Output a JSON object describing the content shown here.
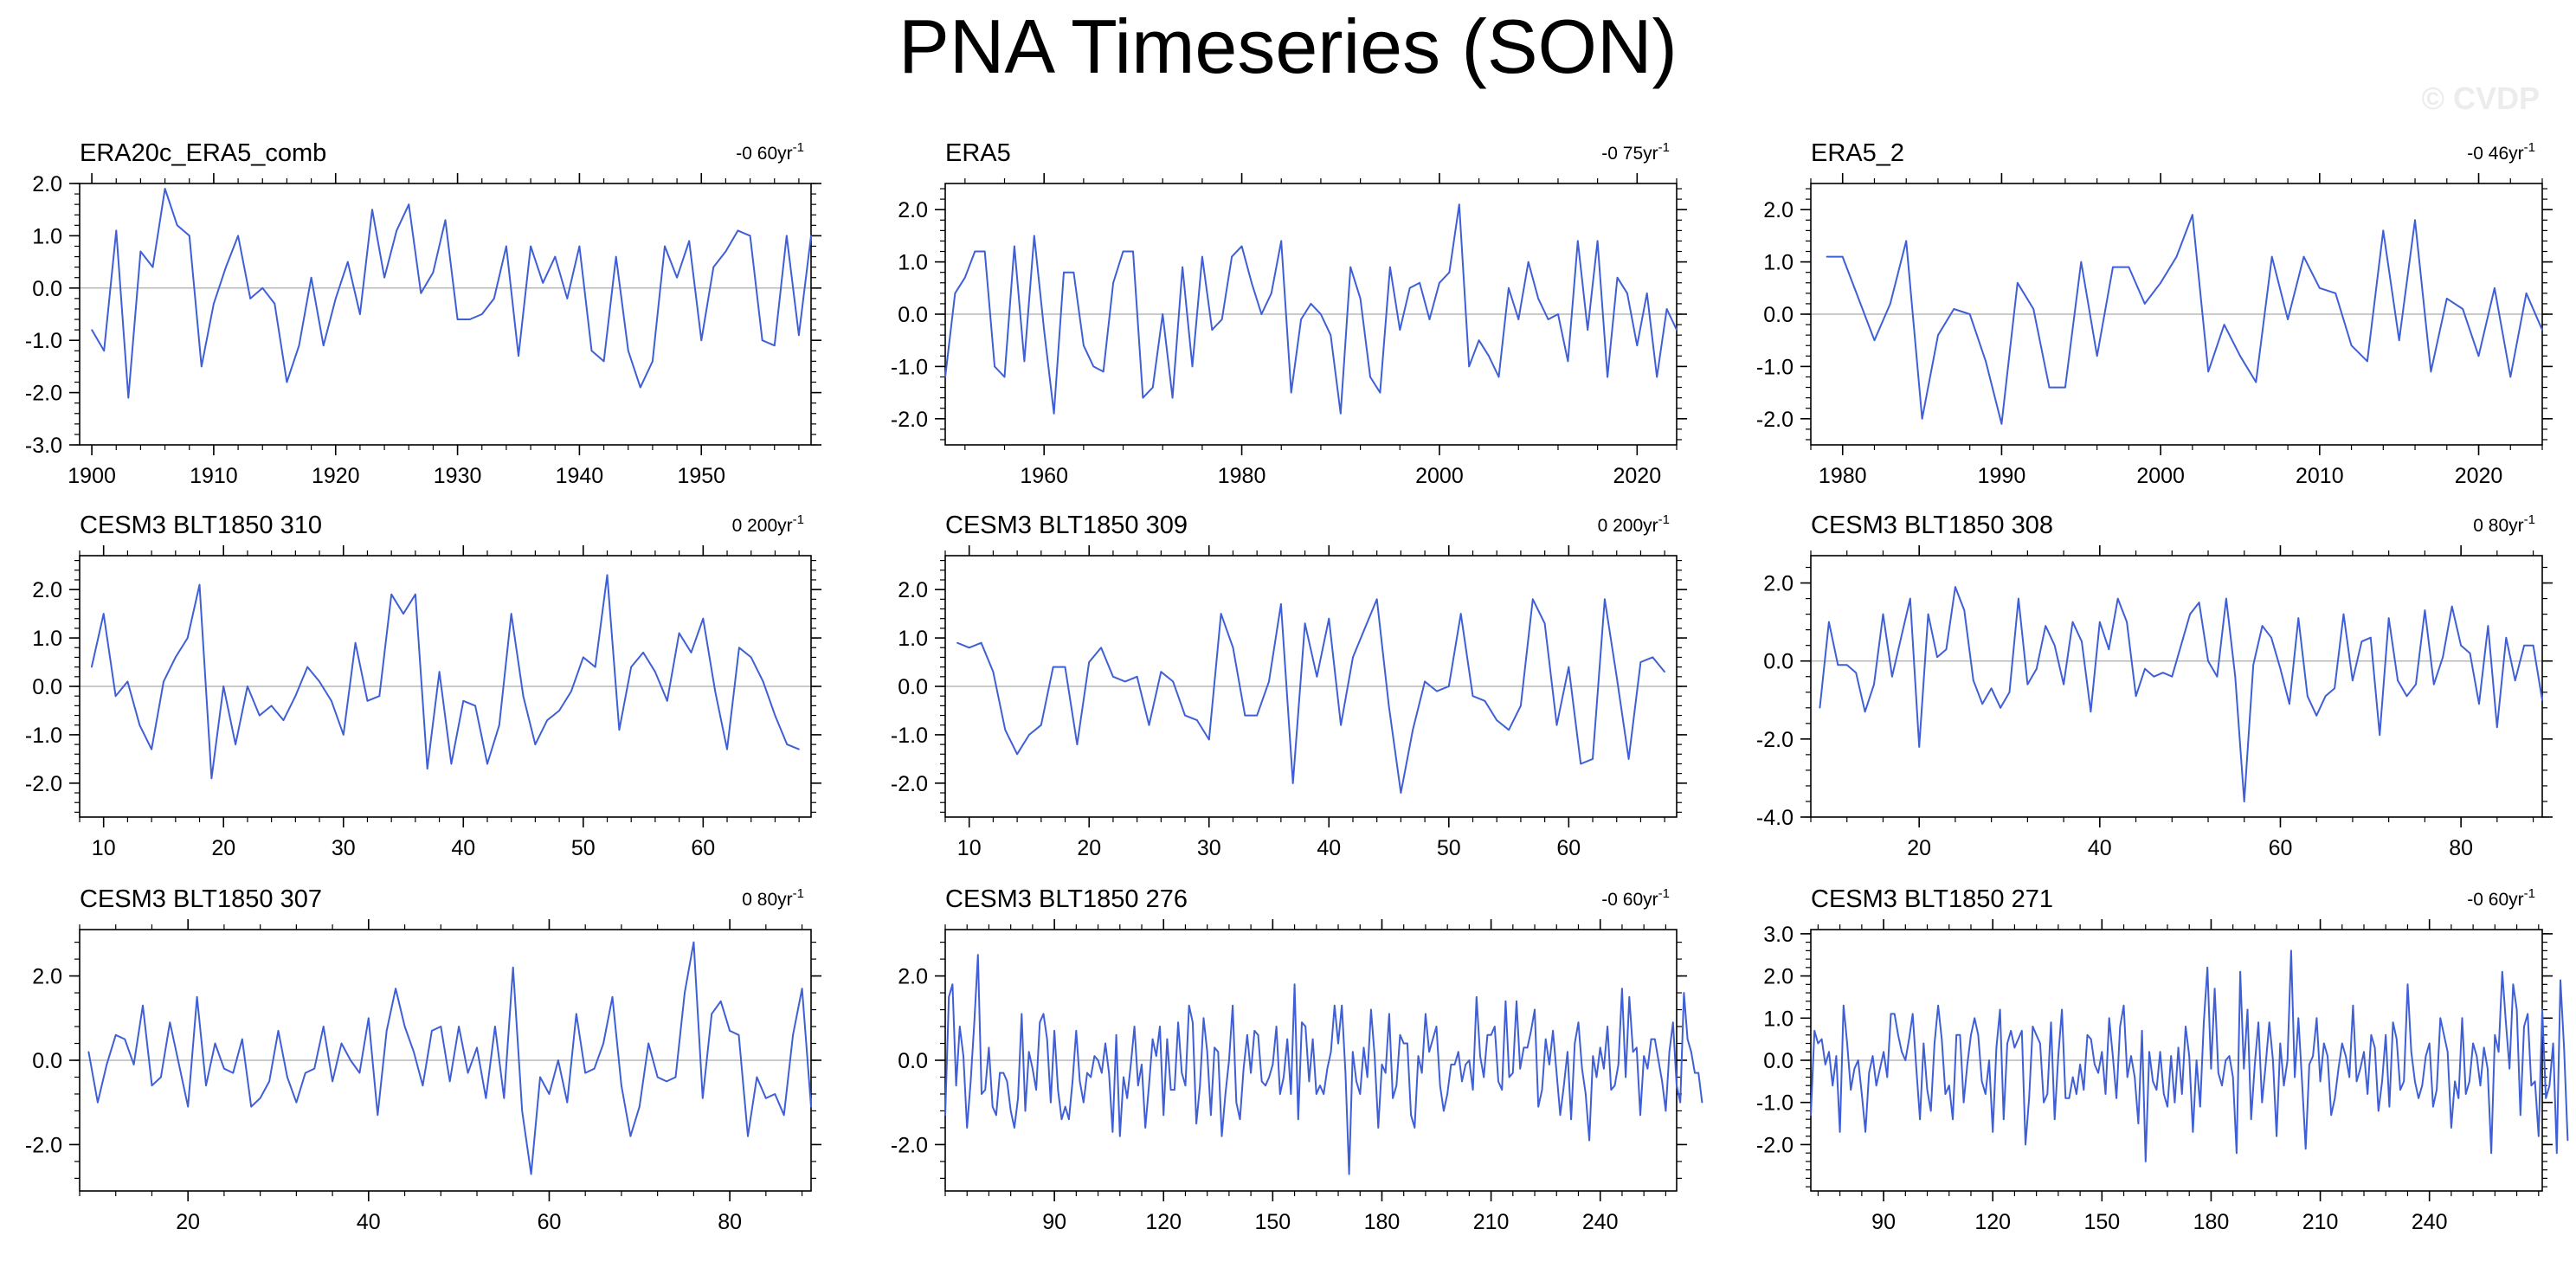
{
  "title": "PNA Timeseries (SON)",
  "watermark": "© CVDP",
  "colors": {
    "line": "#3f5fd6",
    "zero": "#b8b8b8",
    "axis": "#000000"
  },
  "chart_data": [
    {
      "type": "line",
      "title": "ERA20c_ERA5_comb",
      "trend": "-0 60yr",
      "trend_sup": "-1",
      "xlim": [
        1899,
        1959
      ],
      "ylim": [
        -3,
        2
      ],
      "xticks": [
        1900,
        1910,
        1920,
        1930,
        1940,
        1950
      ],
      "yticks": [
        -3,
        -2,
        -1,
        0,
        1,
        2
      ],
      "ytick_labels": [
        "-3.0",
        "-2.0",
        "-1.0",
        "0.0",
        "1.0",
        "2.0"
      ],
      "x_start": 1900,
      "x_step": 1,
      "values": [
        -0.8,
        -1.2,
        1.1,
        -2.1,
        0.7,
        0.4,
        1.9,
        1.2,
        1.0,
        -1.5,
        -0.3,
        0.4,
        1.0,
        -0.2,
        0.0,
        -0.3,
        -1.8,
        -1.1,
        0.2,
        -1.1,
        -0.2,
        0.5,
        -0.5,
        1.5,
        0.2,
        1.1,
        1.6,
        -0.1,
        0.3,
        1.3,
        -0.6,
        -0.6,
        -0.5,
        -0.2,
        0.8,
        -1.3,
        0.8,
        0.1,
        0.6,
        -0.2,
        0.8,
        -1.2,
        -1.4,
        0.6,
        -1.2,
        -1.9,
        -1.4,
        0.8,
        0.2,
        0.9,
        -1.0,
        0.4,
        0.7,
        1.1,
        1.0,
        -1.0,
        -1.1,
        1.0,
        -0.9,
        1.0
      ]
    },
    {
      "type": "line",
      "title": "ERA5",
      "trend": "-0 75yr",
      "trend_sup": "-1",
      "xlim": [
        1950,
        2024
      ],
      "ylim": [
        -2.5,
        2.5
      ],
      "xticks": [
        1960,
        1980,
        2000,
        2020
      ],
      "yticks": [
        -2,
        -1,
        0,
        1,
        2
      ],
      "ytick_labels": [
        "-2.0",
        "-1.0",
        "0.0",
        "1.0",
        "2.0"
      ],
      "x_start": 1950,
      "x_step": 1,
      "values": [
        -1.2,
        0.4,
        0.7,
        1.2,
        1.2,
        -1.0,
        -1.2,
        1.3,
        -0.9,
        1.5,
        -0.3,
        -1.9,
        0.8,
        0.8,
        -0.6,
        -1.0,
        -1.1,
        0.6,
        1.2,
        1.2,
        -1.6,
        -1.4,
        0.0,
        -1.6,
        0.9,
        -1.0,
        1.1,
        -0.3,
        -0.1,
        1.1,
        1.3,
        0.6,
        0.0,
        0.4,
        1.4,
        -1.5,
        -0.1,
        0.2,
        0.0,
        -0.4,
        -1.9,
        0.9,
        0.3,
        -1.2,
        -1.5,
        0.9,
        -0.3,
        0.5,
        0.6,
        -0.1,
        0.6,
        0.8,
        2.1,
        -1.0,
        -0.5,
        -0.8,
        -1.2,
        0.5,
        -0.1,
        1.0,
        0.3,
        -0.1,
        0.0,
        -0.9,
        1.4,
        -0.3,
        1.4,
        -1.2,
        0.7,
        0.4,
        -0.6,
        0.4,
        -1.2,
        0.1,
        -0.3
      ]
    },
    {
      "type": "line",
      "title": "ERA5_2",
      "trend": "-0 46yr",
      "trend_sup": "-1",
      "xlim": [
        1978,
        2024
      ],
      "ylim": [
        -2.5,
        2.5
      ],
      "xticks": [
        1980,
        1990,
        2000,
        2010,
        2020
      ],
      "yticks": [
        -2,
        -1,
        0,
        1,
        2
      ],
      "ytick_labels": [
        "-2.0",
        "-1.0",
        "0.0",
        "1.0",
        "2.0"
      ],
      "x_start": 1979,
      "x_step": 1,
      "values": [
        1.1,
        1.1,
        0.3,
        -0.5,
        0.2,
        1.4,
        -2.0,
        -0.4,
        0.1,
        0.0,
        -0.9,
        -2.1,
        0.6,
        0.1,
        -1.4,
        -1.4,
        1.0,
        -0.8,
        0.9,
        0.9,
        0.2,
        0.6,
        1.1,
        1.9,
        -1.1,
        -0.2,
        -0.8,
        -1.3,
        1.1,
        -0.1,
        1.1,
        0.5,
        0.4,
        -0.6,
        -0.9,
        1.6,
        -0.5,
        1.8,
        -1.1,
        0.3,
        0.1,
        -0.8,
        0.5,
        -1.2,
        0.4,
        -0.3
      ]
    },
    {
      "type": "line",
      "title": "CESM3 BLT1850 310",
      "trend": "0 200yr",
      "trend_sup": "-1",
      "xlim": [
        8,
        69
      ],
      "ylim": [
        -2.7,
        2.7
      ],
      "xticks": [
        10,
        20,
        30,
        40,
        50,
        60
      ],
      "yticks": [
        -2,
        -1,
        0,
        1,
        2
      ],
      "ytick_labels": [
        "-2.0",
        "-1.0",
        "0.0",
        "1.0",
        "2.0"
      ],
      "x_start": 9,
      "x_step": 1,
      "values": [
        0.4,
        1.5,
        -0.2,
        0.1,
        -0.8,
        -1.3,
        0.1,
        0.6,
        1.0,
        2.1,
        -1.9,
        0.0,
        -1.2,
        0.0,
        -0.6,
        -0.4,
        -0.7,
        -0.2,
        0.4,
        0.1,
        -0.3,
        -1.0,
        0.9,
        -0.3,
        -0.2,
        1.9,
        1.5,
        1.9,
        -1.7,
        0.3,
        -1.6,
        -0.3,
        -0.4,
        -1.6,
        -0.8,
        1.5,
        -0.2,
        -1.2,
        -0.7,
        -0.5,
        -0.1,
        0.6,
        0.4,
        2.3,
        -0.9,
        0.4,
        0.7,
        0.3,
        -0.3,
        1.1,
        0.7,
        1.4,
        -0.1,
        -1.3,
        0.8,
        0.6,
        0.1,
        -0.6,
        -1.2,
        -1.3
      ]
    },
    {
      "type": "line",
      "title": "CESM3 BLT1850 309",
      "trend": "0 200yr",
      "trend_sup": "-1",
      "xlim": [
        8,
        69
      ],
      "ylim": [
        -2.7,
        2.7
      ],
      "xticks": [
        10,
        20,
        30,
        40,
        50,
        60
      ],
      "yticks": [
        -2,
        -1,
        0,
        1,
        2
      ],
      "ytick_labels": [
        "-2.0",
        "-1.0",
        "0.0",
        "1.0",
        "2.0"
      ],
      "x_start": 9,
      "x_step": 1,
      "values": [
        0.9,
        0.8,
        0.9,
        0.3,
        -0.9,
        -1.4,
        -1.0,
        -0.8,
        0.4,
        0.4,
        -1.2,
        0.5,
        0.8,
        0.2,
        0.1,
        0.2,
        -0.8,
        0.3,
        0.1,
        -0.6,
        -0.7,
        -1.1,
        1.5,
        0.8,
        -0.6,
        -0.6,
        0.1,
        1.7,
        -2.0,
        1.3,
        0.2,
        1.4,
        -0.8,
        0.6,
        1.2,
        1.8,
        -0.4,
        -2.2,
        -0.9,
        0.1,
        -0.1,
        0.0,
        1.5,
        -0.2,
        -0.3,
        -0.7,
        -0.9,
        -0.4,
        1.8,
        1.3,
        -0.8,
        0.4,
        -1.6,
        -1.5,
        1.8,
        0.2,
        -1.5,
        0.5,
        0.6,
        0.3
      ]
    },
    {
      "type": "line",
      "title": "CESM3 BLT1850 308",
      "trend": "0 80yr",
      "trend_sup": "-1",
      "xlim": [
        8,
        89
      ],
      "ylim": [
        -4,
        2.7
      ],
      "xticks": [
        20,
        40,
        60,
        80
      ],
      "yticks": [
        -4,
        -2,
        0,
        2
      ],
      "ytick_labels": [
        "-4.0",
        "-2.0",
        "0.0",
        "2.0"
      ],
      "x_start": 9,
      "x_step": 1,
      "values": [
        -1.2,
        1.0,
        -0.1,
        -0.1,
        -0.3,
        -1.3,
        -0.6,
        1.2,
        -0.4,
        0.6,
        1.6,
        -2.2,
        1.2,
        0.1,
        0.3,
        1.9,
        1.3,
        -0.5,
        -1.1,
        -0.7,
        -1.2,
        -0.8,
        1.6,
        -0.6,
        -0.2,
        0.9,
        0.4,
        -0.6,
        1.0,
        0.5,
        -1.3,
        1.0,
        0.3,
        1.6,
        1.0,
        -0.9,
        -0.2,
        -0.4,
        -0.3,
        -0.4,
        0.4,
        1.2,
        1.5,
        0.0,
        -0.4,
        1.6,
        -0.4,
        -3.6,
        -0.1,
        0.9,
        0.6,
        -0.2,
        -1.1,
        1.1,
        -0.9,
        -1.4,
        -0.9,
        -0.7,
        1.2,
        -0.5,
        0.5,
        0.6,
        -1.9,
        1.1,
        -0.5,
        -0.9,
        -0.6,
        1.3,
        -0.6,
        0.1,
        1.4,
        0.4,
        0.2,
        -1.1,
        0.9,
        -1.7,
        0.6,
        -0.5,
        0.4,
        0.4,
        -1.0
      ]
    },
    {
      "type": "line",
      "title": "CESM3 BLT1850 307",
      "trend": "0 80yr",
      "trend_sup": "-1",
      "xlim": [
        8,
        89
      ],
      "ylim": [
        -3.1,
        3.1
      ],
      "xticks": [
        20,
        40,
        60,
        80
      ],
      "yticks": [
        -2,
        0,
        2
      ],
      "ytick_labels": [
        "-2.0",
        "0.0",
        "2.0"
      ],
      "x_start": 9,
      "x_step": 1,
      "values": [
        0.2,
        -1.0,
        -0.1,
        0.6,
        0.5,
        -0.1,
        1.3,
        -0.6,
        -0.4,
        0.9,
        -0.1,
        -1.1,
        1.5,
        -0.6,
        0.4,
        -0.2,
        -0.3,
        0.5,
        -1.1,
        -0.9,
        -0.5,
        0.7,
        -0.4,
        -1.0,
        -0.3,
        -0.2,
        0.8,
        -0.5,
        0.4,
        0.0,
        -0.3,
        1.0,
        -1.3,
        0.7,
        1.7,
        0.8,
        0.2,
        -0.6,
        0.7,
        0.8,
        -0.5,
        0.8,
        -0.3,
        0.3,
        -0.9,
        0.8,
        -0.9,
        2.2,
        -1.2,
        -2.7,
        -0.4,
        -0.8,
        0.0,
        -1.0,
        1.1,
        -0.3,
        -0.2,
        0.4,
        1.5,
        -0.6,
        -1.8,
        -1.1,
        0.4,
        -0.4,
        -0.5,
        -0.4,
        1.6,
        2.8,
        -0.9,
        1.1,
        1.4,
        0.7,
        0.6,
        -1.8,
        -0.4,
        -0.9,
        -0.8,
        -1.3,
        0.6,
        1.7,
        -1.1
      ]
    },
    {
      "type": "line",
      "title": "CESM3 BLT1850 276",
      "trend": "-0 60yr",
      "trend_sup": "-1",
      "xlim": [
        60,
        261
      ],
      "ylim": [
        -3.1,
        3.1
      ],
      "xticks": [
        90,
        120,
        150,
        180,
        210,
        240
      ],
      "yticks": [
        -2,
        0,
        2
      ],
      "ytick_labels": [
        "-2.0",
        "0.0",
        "2.0"
      ],
      "x_start": 60,
      "x_step": 1,
      "values": [
        -1.3,
        1.5,
        1.8,
        -0.6,
        0.8,
        0.1,
        -1.6,
        -0.5,
        0.9,
        2.5,
        -0.8,
        -0.7,
        0.3,
        -1.1,
        -1.3,
        -0.3,
        -0.3,
        -0.5,
        -1.2,
        -1.6,
        -0.9,
        1.1,
        -1.2,
        0.2,
        -0.2,
        -0.7,
        0.9,
        1.1,
        0.5,
        -1.0,
        0.7,
        -0.7,
        -1.4,
        -1.1,
        -1.4,
        -0.5,
        0.7,
        -0.5,
        -1.0,
        -0.3,
        -0.4,
        0.1,
        0.0,
        -0.3,
        0.4,
        -0.3,
        -1.7,
        0.6,
        -1.8,
        -0.4,
        -0.9,
        -0.1,
        0.8,
        -0.6,
        -0.1,
        -1.6,
        -0.6,
        0.5,
        0.1,
        0.8,
        -1.3,
        0.5,
        -0.7,
        -0.7,
        0.9,
        -0.3,
        -0.6,
        1.3,
        0.9,
        -1.5,
        -0.6,
        1.0,
        0.2,
        -1.3,
        0.3,
        0.2,
        -1.8,
        -0.8,
        0.0,
        1.3,
        -1.0,
        -1.4,
        -0.2,
        0.6,
        -0.3,
        0.7,
        0.6,
        -0.5,
        -0.6,
        -0.4,
        -0.1,
        0.8,
        -0.8,
        -0.4,
        0.5,
        -0.8,
        1.8,
        -1.4,
        0.9,
        0.8,
        -0.5,
        0.5,
        -0.8,
        -0.6,
        -0.8,
        -0.2,
        0.2,
        1.3,
        0.4,
        1.3,
        -0.3,
        -2.7,
        0.2,
        -0.5,
        -0.8,
        0.3,
        -0.4,
        1.2,
        0.1,
        -1.6,
        -0.1,
        -0.3,
        1.1,
        -0.9,
        -0.6,
        0.6,
        0.4,
        0.4,
        -1.3,
        -1.6,
        0.1,
        -0.3,
        1.1,
        0.2,
        0.5,
        0.8,
        -0.6,
        -1.2,
        -0.8,
        -0.1,
        -0.1,
        0.2,
        -0.5,
        -0.1,
        0.0,
        -0.7,
        1.5,
        0.1,
        -0.4,
        0.6,
        0.6,
        0.8,
        -0.5,
        -0.7,
        1.4,
        -0.4,
        -0.3,
        1.4,
        -0.2,
        0.3,
        0.3,
        0.7,
        1.2,
        -1.1,
        -0.7,
        0.5,
        -0.1,
        0.7,
        -0.3,
        -1.3,
        -0.6,
        0.2,
        -1.4,
        0.4,
        0.9,
        -0.2,
        -0.8,
        -1.9,
        0.1,
        -0.4,
        0.3,
        -0.2,
        0.8,
        -0.7,
        -0.6,
        -0.1,
        1.7,
        -0.4,
        1.5,
        0.2,
        0.3,
        -1.3,
        0.1,
        -0.2,
        0.5,
        0.5,
        0.0,
        -0.5,
        -1.2,
        0.2,
        0.9,
        -0.6,
        -1.0,
        1.6,
        0.5,
        0.2,
        -0.3,
        -0.3,
        -1.0
      ]
    },
    {
      "type": "line",
      "title": "CESM3 BLT1850 271",
      "trend": "-0 60yr",
      "trend_sup": "-1",
      "xlim": [
        70,
        271
      ],
      "ylim": [
        -3.1,
        3.1
      ],
      "xticks": [
        90,
        120,
        150,
        180,
        210,
        240
      ],
      "yticks": [
        -2,
        -1,
        0,
        1,
        2,
        3
      ],
      "ytick_labels": [
        "-2.0",
        "-1.0",
        "0.0",
        "1.0",
        "2.0",
        "3.0"
      ],
      "x_start": 70,
      "x_step": 1,
      "values": [
        -1.3,
        0.7,
        0.4,
        0.5,
        -0.1,
        0.2,
        -0.6,
        0.1,
        -1.7,
        1.3,
        0.4,
        -0.7,
        -0.2,
        0.0,
        -0.8,
        -1.7,
        -0.3,
        0.1,
        -0.6,
        -0.2,
        0.2,
        -0.4,
        1.1,
        1.1,
        0.6,
        0.2,
        0.0,
        0.5,
        1.1,
        -0.2,
        -1.4,
        0.4,
        -0.7,
        -1.2,
        0.4,
        1.3,
        0.5,
        -0.8,
        -0.6,
        -1.4,
        0.6,
        0.6,
        -1.0,
        -0.1,
        0.6,
        1.0,
        0.6,
        -0.5,
        -0.8,
        0.0,
        -1.7,
        0.3,
        1.2,
        -1.4,
        0.4,
        0.7,
        0.3,
        0.5,
        0.7,
        -2.0,
        -0.9,
        0.8,
        0.6,
        0.4,
        -1.0,
        -0.8,
        0.9,
        -1.4,
        0.1,
        1.2,
        -0.9,
        -0.9,
        -0.4,
        -0.8,
        -0.1,
        -0.7,
        0.6,
        0.5,
        -0.1,
        -0.3,
        0.2,
        -0.8,
        1.0,
        0.1,
        -0.9,
        0.8,
        1.3,
        -0.4,
        0.1,
        -0.4,
        -1.5,
        0.7,
        -2.4,
        0.2,
        -0.5,
        -0.7,
        0.2,
        -0.8,
        -1.1,
        0.1,
        -1.0,
        0.3,
        -0.8,
        0.8,
        0.1,
        -1.7,
        0.0,
        -1.1,
        0.9,
        2.2,
        -0.2,
        1.7,
        -0.3,
        -0.6,
        0.0,
        0.1,
        -0.4,
        -2.2,
        2.1,
        -0.2,
        1.2,
        -1.4,
        -0.1,
        0.9,
        -1.0,
        -0.1,
        0.9,
        0.0,
        -1.8,
        0.4,
        -0.6,
        0.0,
        2.6,
        -0.4,
        1.0,
        -0.5,
        -2.1,
        -0.1,
        0.1,
        1.0,
        -0.5,
        0.4,
        0.1,
        -1.3,
        -0.9,
        -0.2,
        0.4,
        0.1,
        -0.4,
        1.3,
        -0.5,
        -0.2,
        0.2,
        -0.8,
        0.6,
        0.3,
        -1.2,
        -0.5,
        0.6,
        -1.1,
        0.9,
        0.5,
        -0.7,
        -0.5,
        1.8,
        0.2,
        -0.5,
        -0.9,
        -0.6,
        0.1,
        0.4,
        -1.1,
        -0.7,
        1.0,
        0.6,
        0.2,
        -1.6,
        -0.5,
        -0.9,
        1.0,
        -0.8,
        -0.5,
        0.4,
        0.1,
        -0.6,
        0.3,
        -0.2,
        -2.2,
        0.6,
        0.2,
        2.1,
        0.9,
        -0.2,
        1.8,
        1.2,
        -1.3,
        0.8,
        1.1,
        -0.6,
        -0.5,
        -1.8,
        1.2,
        -0.9,
        -0.6,
        0.4,
        -2.2,
        1.9,
        0.3,
        -1.9
      ]
    }
  ]
}
